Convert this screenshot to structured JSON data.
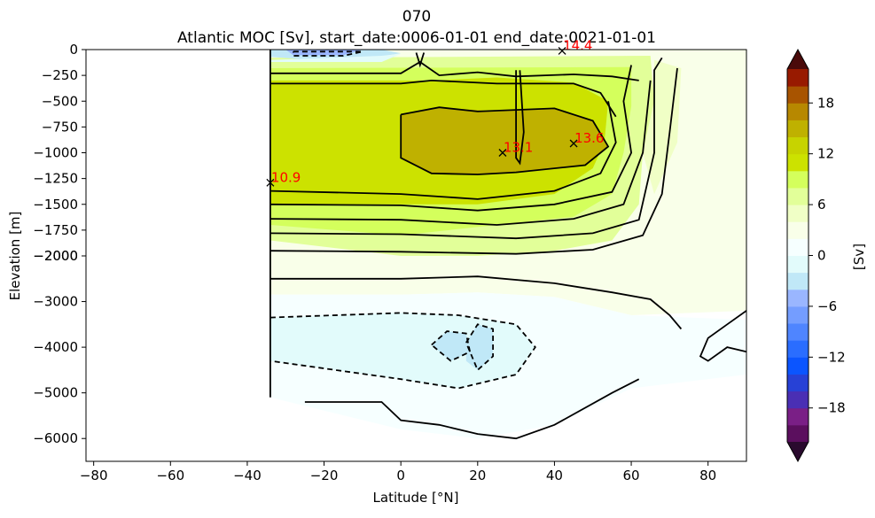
{
  "chart_data": {
    "type": "contour",
    "title": "070",
    "subtitle": "Atlantic MOC [Sv], start_date:0006-01-01 end_date:0021-01-01",
    "xlabel": "Latitude [°N]",
    "ylabel": "Elevation [m]",
    "xlim": [
      -82,
      90
    ],
    "x_ticks": [
      -80,
      -60,
      -40,
      -20,
      0,
      20,
      40,
      60,
      80
    ],
    "y_ticks_upper": [
      0,
      -250,
      -500,
      -750,
      -1000,
      -1250,
      -1500,
      -1750,
      -2000
    ],
    "y_ticks_lower": [
      -2000,
      -3000,
      -4000,
      -5000,
      -6000
    ],
    "y_ranges": {
      "upper": [
        -2000,
        0
      ],
      "lower": [
        -6500,
        -2000
      ]
    },
    "colorbar": {
      "label": "[Sv]",
      "ticks": [
        18,
        12,
        6,
        0,
        -6,
        -12,
        -18
      ],
      "levels": [
        -22,
        -20,
        -18,
        -16,
        -14,
        -12,
        -10,
        -8,
        -6,
        -4,
        -2,
        0,
        2,
        4,
        6,
        8,
        10,
        12,
        14,
        16,
        18,
        20,
        22
      ],
      "colors": [
        "#5b0f5e",
        "#7a1f86",
        "#4a2fb4",
        "#2741d6",
        "#0b55ff",
        "#2a6dff",
        "#4f85ff",
        "#749dff",
        "#9ab6ff",
        "#c0e8f7",
        "#e2fbfb",
        "#f6ffff",
        "#f9ffe9",
        "#f0ffc6",
        "#e2ff99",
        "#d4ff5c",
        "#cce200",
        "#c7d300",
        "#bfb100",
        "#b78800",
        "#a85400",
        "#981a00",
        "#6f0a0a"
      ],
      "extend_min_color": "#2a0a2e",
      "extend_max_color": "#4a0a0a"
    },
    "annotations": [
      {
        "lat": 42,
        "depth": -12,
        "label": "14.4"
      },
      {
        "lat": 26.5,
        "depth": -1000,
        "label": "13.1"
      },
      {
        "lat": 45,
        "depth": -910,
        "label": "13.6"
      },
      {
        "lat": -34,
        "depth": -1290,
        "label": "10.9"
      }
    ]
  }
}
